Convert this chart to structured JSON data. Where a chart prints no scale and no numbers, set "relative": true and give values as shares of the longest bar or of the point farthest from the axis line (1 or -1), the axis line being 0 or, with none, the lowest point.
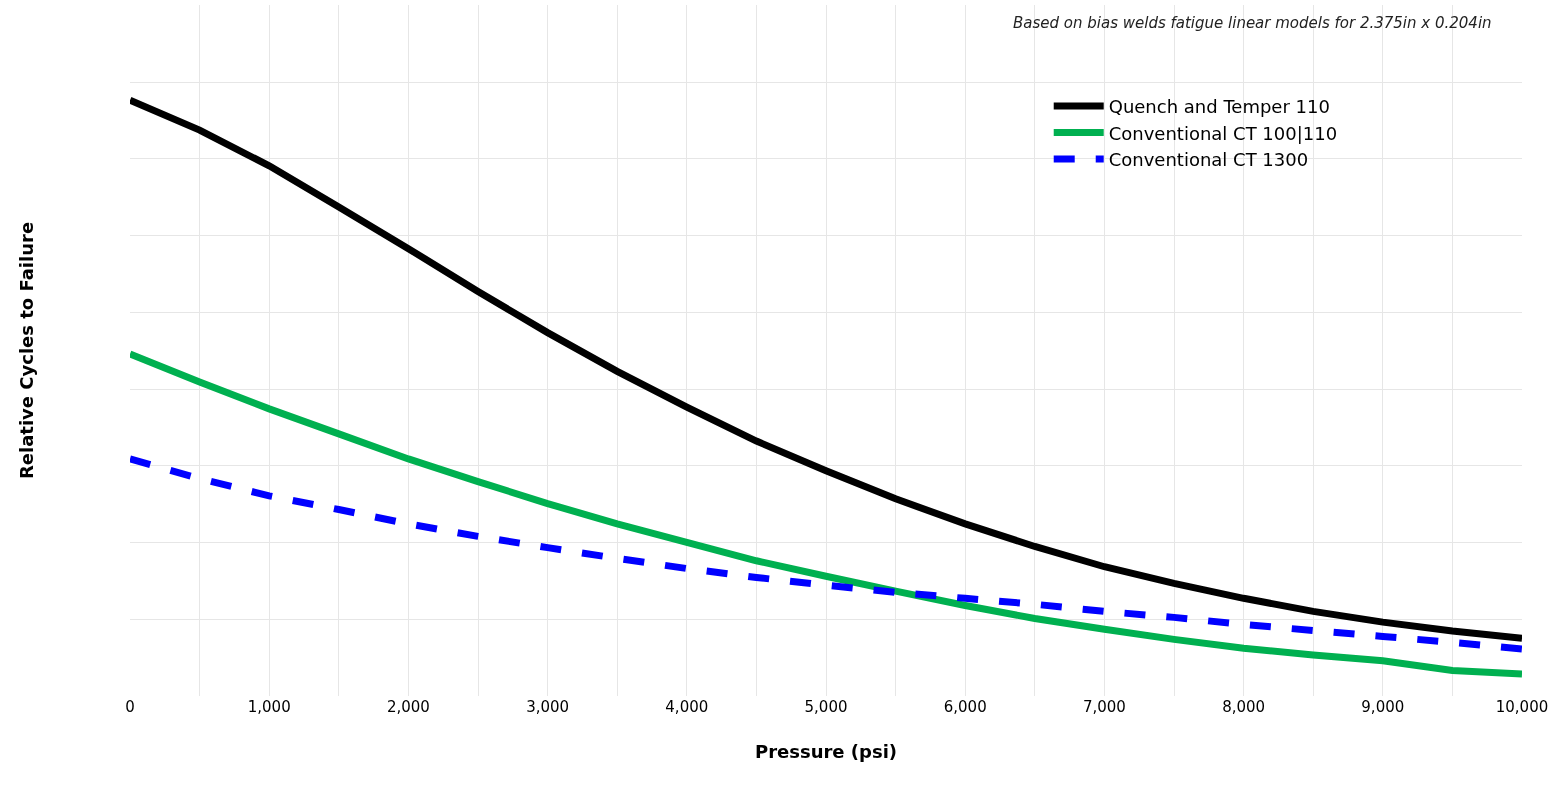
{
  "chart_data": {
    "type": "line",
    "relative": true,
    "xlabel": "Pressure (psi)",
    "ylabel": "Relative Cycles to Failure",
    "annotations": [
      "Based on bias welds fatigue linear models for 2.375in x 0.204in"
    ],
    "x": [
      0,
      500,
      1000,
      1500,
      2000,
      2500,
      3000,
      3500,
      4000,
      4500,
      5000,
      5500,
      6000,
      6500,
      7000,
      7500,
      8000,
      8500,
      9000,
      9500,
      10000
    ],
    "xlim": [
      0,
      10000
    ],
    "xticks": [
      0,
      {
        "value": 1000,
        "label": "1,000"
      },
      {
        "value": 2000,
        "label": "2,000"
      },
      {
        "value": 3000,
        "label": "3,000"
      },
      {
        "value": 4000,
        "label": "4,000"
      },
      {
        "value": 5000,
        "label": "5,000"
      },
      {
        "value": 6000,
        "label": "6,000"
      },
      {
        "value": 7000,
        "label": "7,000"
      },
      {
        "value": 8000,
        "label": "8,000"
      },
      {
        "value": 9000,
        "label": "9,000"
      },
      {
        "value": 10000,
        "label": "10,000"
      }
    ],
    "grid": true,
    "legend": "top right",
    "marker": "none",
    "series": [
      {
        "name": "Quench and Temper 110",
        "color": "#000000",
        "line_style": "solid",
        "values": [
          1,
          0.95,
          0.89,
          0.821,
          0.751,
          0.679,
          0.61,
          0.545,
          0.485,
          0.428,
          0.378,
          0.331,
          0.289,
          0.251,
          0.217,
          0.189,
          0.164,
          0.142,
          0.124,
          0.109,
          0.097
        ]
      },
      {
        "name": "Conventional CT 100|110",
        "color": "#00b050",
        "line_style": "solid",
        "values": [
          0.574,
          0.527,
          0.482,
          0.44,
          0.398,
          0.36,
          0.323,
          0.289,
          0.258,
          0.227,
          0.201,
          0.176,
          0.152,
          0.13,
          0.112,
          0.095,
          0.08,
          0.069,
          0.059,
          0.043,
          0.037
        ]
      },
      {
        "name": "Conventional CT 1300",
        "color": "#0000ff",
        "line_style": "dashed",
        "values": [
          0.398,
          0.365,
          0.336,
          0.313,
          0.289,
          0.268,
          0.249,
          0.231,
          0.214,
          0.199,
          0.186,
          0.174,
          0.164,
          0.154,
          0.142,
          0.132,
          0.12,
          0.11,
          0.1,
          0.09,
          0.079
        ]
      }
    ]
  }
}
